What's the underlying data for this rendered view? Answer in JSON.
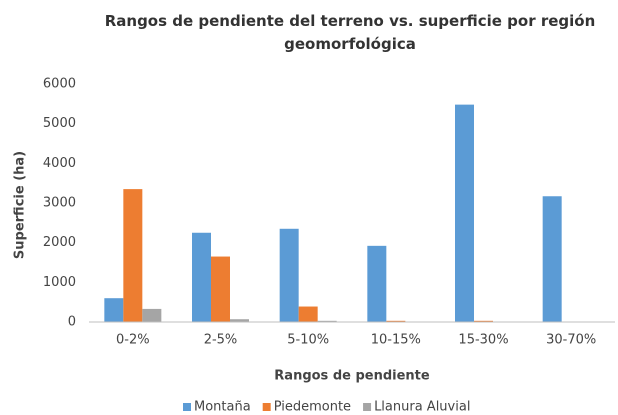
{
  "chart_data": {
    "type": "bar",
    "title": "Rangos de pendiente del terreno vs. superficie por región geomorfológica",
    "xlabel": "Rangos de pendiente",
    "ylabel": "Superficie (ha)",
    "categories": [
      "0-2%",
      "2-5%",
      "5-10%",
      "10-15%",
      "15-30%",
      "30-70%"
    ],
    "series": [
      {
        "name": "Montaña",
        "color": "#5b9bd5",
        "values": [
          600,
          2250,
          2350,
          1920,
          5480,
          3170
        ]
      },
      {
        "name": "Piedemonte",
        "color": "#ed7d31",
        "values": [
          3350,
          1650,
          390,
          30,
          30,
          0
        ]
      },
      {
        "name": "Llanura Aluvial",
        "color": "#a5a5a5",
        "values": [
          330,
          70,
          30,
          0,
          0,
          0
        ]
      }
    ],
    "ylim": [
      0,
      6000
    ],
    "yticks": [
      0,
      1000,
      2000,
      3000,
      4000,
      5000,
      6000
    ],
    "grid": false,
    "legend": "bottom"
  }
}
